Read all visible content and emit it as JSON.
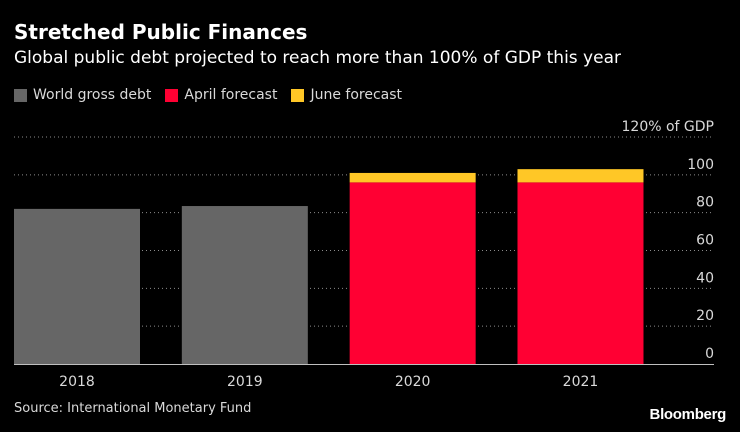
{
  "header": {
    "title": "Stretched Public Finances",
    "subtitle": "Global public debt projected to reach more than 100% of GDP this year"
  },
  "legend": [
    {
      "label": "World gross debt",
      "color": "#666666"
    },
    {
      "label": "April forecast",
      "color": "#ff0033"
    },
    {
      "label": "June forecast",
      "color": "#ffc726"
    }
  ],
  "chart_data": {
    "type": "bar",
    "stacked": true,
    "title": "Stretched Public Finances",
    "subtitle": "Global public debt projected to reach more than 100% of GDP this year",
    "categories": [
      "2018",
      "2019",
      "2020",
      "2021"
    ],
    "series": [
      {
        "name": "World gross debt",
        "color": "#666666",
        "values": [
          82,
          83.5,
          0,
          0
        ]
      },
      {
        "name": "April forecast",
        "color": "#ff0033",
        "values": [
          0,
          0,
          96,
          96
        ]
      },
      {
        "name": "June forecast",
        "color": "#ffc726",
        "values": [
          0,
          0,
          5,
          7
        ]
      }
    ],
    "ylim": [
      0,
      120
    ],
    "yticks": [
      {
        "value": 120,
        "label": "120% of GDP"
      },
      {
        "value": 100,
        "label": "100"
      },
      {
        "value": 80,
        "label": "80"
      },
      {
        "value": 60,
        "label": "60"
      },
      {
        "value": 40,
        "label": "40"
      },
      {
        "value": 20,
        "label": "20"
      },
      {
        "value": 0,
        "label": "0"
      }
    ],
    "ylabel": "",
    "xlabel": "",
    "grid": "dotted-horizontal",
    "axis_side": "right"
  },
  "footer": {
    "source": "Source: International Monetary Fund",
    "brand": "Bloomberg"
  }
}
